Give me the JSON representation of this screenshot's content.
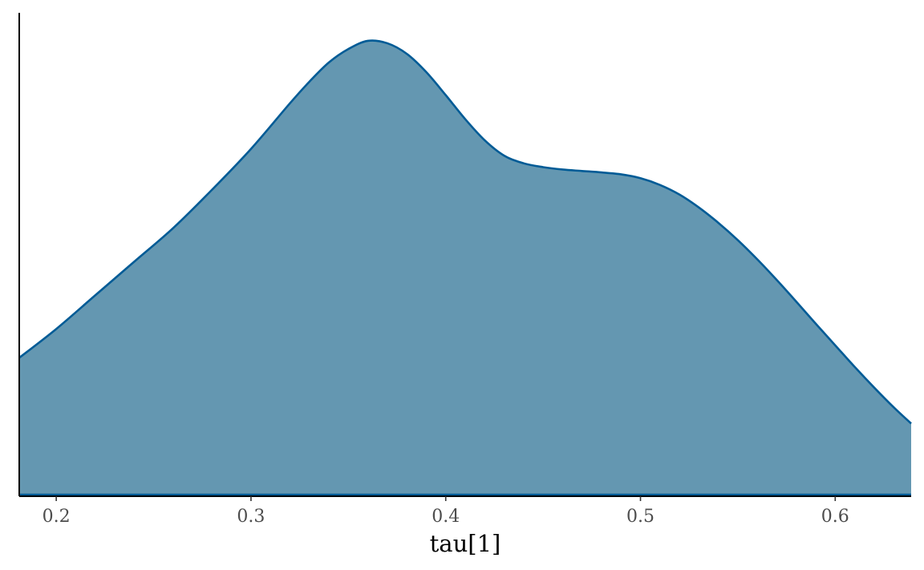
{
  "chart_data": {
    "type": "area",
    "title": "",
    "xlabel": "tau[1]",
    "ylabel": "",
    "xlim": [
      0.181,
      0.639
    ],
    "ylim": [
      0,
      1.0
    ],
    "x_ticks": [
      0.2,
      0.3,
      0.4,
      0.5,
      0.6
    ],
    "x_tick_labels": [
      "0.2",
      "0.3",
      "0.4",
      "0.5",
      "0.6"
    ],
    "grid": false,
    "legend": "none",
    "series": [
      {
        "x": [
          0.181,
          0.2,
          0.22,
          0.24,
          0.26,
          0.28,
          0.3,
          0.32,
          0.33,
          0.34,
          0.35,
          0.36,
          0.37,
          0.38,
          0.39,
          0.4,
          0.41,
          0.42,
          0.43,
          0.44,
          0.45,
          0.46,
          0.47,
          0.48,
          0.49,
          0.5,
          0.51,
          0.52,
          0.53,
          0.54,
          0.55,
          0.56,
          0.57,
          0.58,
          0.59,
          0.6,
          0.61,
          0.62,
          0.63,
          0.639
        ],
        "y": [
          0.285,
          0.345,
          0.415,
          0.485,
          0.555,
          0.635,
          0.72,
          0.815,
          0.86,
          0.9,
          0.928,
          0.945,
          0.94,
          0.918,
          0.88,
          0.832,
          0.782,
          0.738,
          0.706,
          0.69,
          0.682,
          0.677,
          0.674,
          0.671,
          0.667,
          0.659,
          0.645,
          0.625,
          0.598,
          0.566,
          0.53,
          0.49,
          0.447,
          0.402,
          0.356,
          0.311,
          0.266,
          0.223,
          0.182,
          0.148
        ]
      }
    ],
    "colors": {
      "fill": "#6497b1",
      "line": "#005b96",
      "axis": "#000000"
    }
  }
}
